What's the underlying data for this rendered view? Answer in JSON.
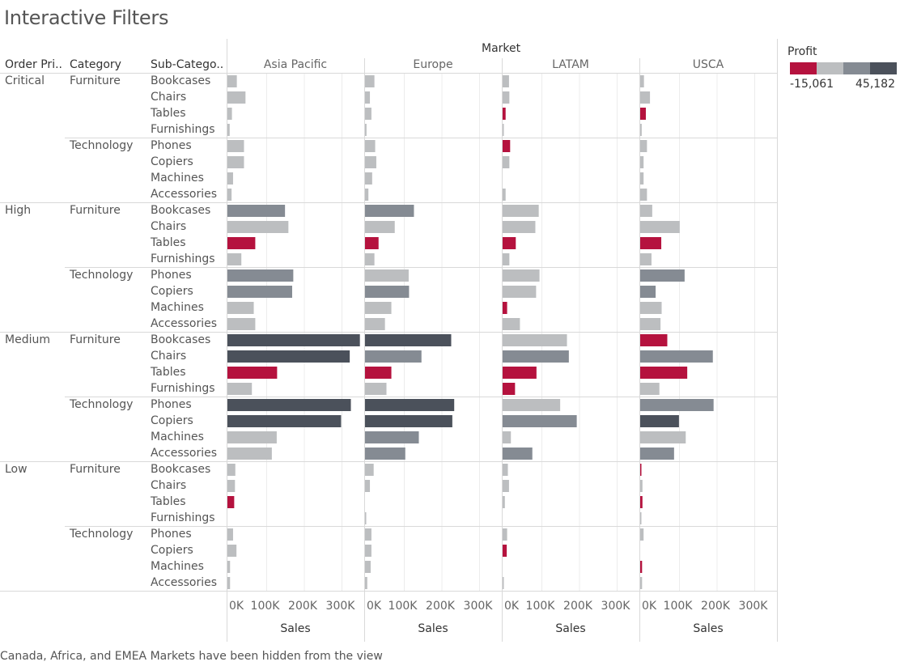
{
  "title": "Interactive Filters",
  "headers": {
    "order_priority": "Order Pri..",
    "category": "Category",
    "sub_category": "Sub-Catego.."
  },
  "market_label": "Market",
  "markets": [
    "Asia Pacific",
    "Europe",
    "LATAM",
    "USCA"
  ],
  "legend": {
    "title": "Profit",
    "min": "-15,061",
    "max": "45,182",
    "colors": [
      "#b5123e",
      "#bcbec0",
      "#858b93",
      "#4b515b"
    ]
  },
  "footer": "Canada, Africa, and EMEA Markets have been hidden from the view",
  "chart_data": {
    "type": "bar",
    "orientation": "horizontal",
    "xlabel": "Sales",
    "x_ticks": [
      "0K",
      "100K",
      "200K",
      "300K"
    ],
    "xlim": [
      0,
      360000
    ],
    "grid": true,
    "color_encoding": "Profit",
    "priorities": [
      {
        "name": "Critical",
        "categories": [
          {
            "name": "Furniture",
            "subs": [
              {
                "name": "Bookcases",
                "values": [
                  25000,
                  25000,
                  17000,
                  10000
                ],
                "profit": [
                  "light",
                  "light",
                  "light",
                  "light"
                ]
              },
              {
                "name": "Chairs",
                "values": [
                  48000,
                  13000,
                  18000,
                  26000
                ],
                "profit": [
                  "light",
                  "light",
                  "light",
                  "light"
                ]
              },
              {
                "name": "Tables",
                "values": [
                  12000,
                  17000,
                  8000,
                  15000
                ],
                "profit": [
                  "light",
                  "light",
                  "neg",
                  "neg"
                ]
              },
              {
                "name": "Furnishings",
                "values": [
                  6000,
                  4000,
                  2000,
                  4000
                ],
                "profit": [
                  "light",
                  "light",
                  "light",
                  "light"
                ]
              }
            ]
          },
          {
            "name": "Technology",
            "subs": [
              {
                "name": "Phones",
                "values": [
                  44000,
                  27000,
                  20000,
                  18000
                ],
                "profit": [
                  "light",
                  "light",
                  "neg",
                  "light"
                ]
              },
              {
                "name": "Copiers",
                "values": [
                  44000,
                  30000,
                  18000,
                  9000
                ],
                "profit": [
                  "light",
                  "light",
                  "light",
                  "light"
                ]
              },
              {
                "name": "Machines",
                "values": [
                  15000,
                  19000,
                  0,
                  9000
                ],
                "profit": [
                  "light",
                  "light",
                  "light",
                  "light"
                ]
              },
              {
                "name": "Accessories",
                "values": [
                  11000,
                  9000,
                  8000,
                  18000
                ],
                "profit": [
                  "light",
                  "light",
                  "light",
                  "light"
                ]
              }
            ]
          }
        ]
      },
      {
        "name": "High",
        "categories": [
          {
            "name": "Furniture",
            "subs": [
              {
                "name": "Bookcases",
                "values": [
                  153000,
                  130000,
                  96000,
                  32000
                ],
                "profit": [
                  "mid",
                  "mid",
                  "light",
                  "light"
                ]
              },
              {
                "name": "Chairs",
                "values": [
                  162000,
                  79000,
                  87000,
                  105000
                ],
                "profit": [
                  "light",
                  "light",
                  "light",
                  "light"
                ]
              },
              {
                "name": "Tables",
                "values": [
                  74000,
                  36000,
                  35000,
                  56000
                ],
                "profit": [
                  "neg",
                  "neg",
                  "neg",
                  "neg"
                ]
              },
              {
                "name": "Furnishings",
                "values": [
                  37000,
                  25000,
                  18000,
                  30000
                ],
                "profit": [
                  "light",
                  "light",
                  "light",
                  "light"
                ]
              }
            ]
          },
          {
            "name": "Technology",
            "subs": [
              {
                "name": "Phones",
                "values": [
                  175000,
                  116000,
                  98000,
                  118000
                ],
                "profit": [
                  "mid",
                  "light",
                  "light",
                  "mid"
                ]
              },
              {
                "name": "Copiers",
                "values": [
                  172000,
                  117000,
                  89000,
                  41000
                ],
                "profit": [
                  "mid",
                  "mid",
                  "light",
                  "mid"
                ]
              },
              {
                "name": "Machines",
                "values": [
                  70000,
                  70000,
                  12000,
                  57000
                ],
                "profit": [
                  "light",
                  "light",
                  "neg",
                  "light"
                ]
              },
              {
                "name": "Accessories",
                "values": [
                  74000,
                  53000,
                  46000,
                  54000
                ],
                "profit": [
                  "light",
                  "light",
                  "light",
                  "light"
                ]
              }
            ]
          }
        ]
      },
      {
        "name": "Medium",
        "categories": [
          {
            "name": "Furniture",
            "subs": [
              {
                "name": "Bookcases",
                "values": [
                  352000,
                  229000,
                  171000,
                  72000
                ],
                "profit": [
                  "dark",
                  "dark",
                  "light",
                  "neg"
                ]
              },
              {
                "name": "Chairs",
                "values": [
                  325000,
                  150000,
                  176000,
                  193000
                ],
                "profit": [
                  "dark",
                  "mid",
                  "mid",
                  "mid"
                ]
              },
              {
                "name": "Tables",
                "values": [
                  132000,
                  70000,
                  90000,
                  125000
                ],
                "profit": [
                  "neg",
                  "neg",
                  "neg",
                  "neg"
                ]
              },
              {
                "name": "Furnishings",
                "values": [
                  65000,
                  57000,
                  33000,
                  51000
                ],
                "profit": [
                  "light",
                  "light",
                  "neg",
                  "light"
                ]
              }
            ]
          },
          {
            "name": "Technology",
            "subs": [
              {
                "name": "Phones",
                "values": [
                  328000,
                  237000,
                  153000,
                  195000
                ],
                "profit": [
                  "dark",
                  "dark",
                  "light",
                  "mid"
                ]
              },
              {
                "name": "Copiers",
                "values": [
                  302000,
                  232000,
                  197000,
                  103000
                ],
                "profit": [
                  "dark",
                  "dark",
                  "mid",
                  "dark"
                ]
              },
              {
                "name": "Machines",
                "values": [
                  131000,
                  143000,
                  22000,
                  121000
                ],
                "profit": [
                  "light",
                  "mid",
                  "light",
                  "light"
                ]
              },
              {
                "name": "Accessories",
                "values": [
                  118000,
                  107000,
                  79000,
                  90000
                ],
                "profit": [
                  "light",
                  "mid",
                  "mid",
                  "mid"
                ]
              }
            ]
          }
        ]
      },
      {
        "name": "Low",
        "categories": [
          {
            "name": "Furniture",
            "subs": [
              {
                "name": "Bookcases",
                "values": [
                  21000,
                  23000,
                  14000,
                  2000
                ],
                "profit": [
                  "light",
                  "light",
                  "light",
                  "neg"
                ]
              },
              {
                "name": "Chairs",
                "values": [
                  20000,
                  13000,
                  17000,
                  6000
                ],
                "profit": [
                  "light",
                  "light",
                  "light",
                  "light"
                ]
              },
              {
                "name": "Tables",
                "values": [
                  18000,
                  0,
                  6000,
                  6000
                ],
                "profit": [
                  "neg",
                  "light",
                  "light",
                  "neg"
                ]
              },
              {
                "name": "Furnishings",
                "values": [
                  0,
                  2000,
                  0,
                  2000
                ],
                "profit": [
                  "light",
                  "light",
                  "light",
                  "light"
                ]
              }
            ]
          },
          {
            "name": "Technology",
            "subs": [
              {
                "name": "Phones",
                "values": [
                  15000,
                  17000,
                  12000,
                  9000
                ],
                "profit": [
                  "light",
                  "light",
                  "light",
                  "light"
                ]
              },
              {
                "name": "Copiers",
                "values": [
                  24000,
                  17000,
                  11000,
                  0
                ],
                "profit": [
                  "light",
                  "light",
                  "neg",
                  "light"
                ]
              },
              {
                "name": "Machines",
                "values": [
                  7000,
                  15000,
                  0,
                  5000
                ],
                "profit": [
                  "light",
                  "light",
                  "light",
                  "neg"
                ]
              },
              {
                "name": "Accessories",
                "values": [
                  7000,
                  6000,
                  2000,
                  5000
                ],
                "profit": [
                  "light",
                  "light",
                  "light",
                  "light"
                ]
              }
            ]
          }
        ]
      }
    ]
  }
}
